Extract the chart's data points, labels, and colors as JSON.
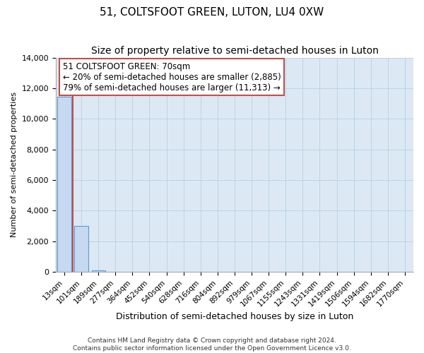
{
  "title": "51, COLTSFOOT GREEN, LUTON, LU4 0XW",
  "subtitle": "Size of property relative to semi-detached houses in Luton",
  "xlabel": "Distribution of semi-detached houses by size in Luton",
  "ylabel": "Number of semi-detached properties",
  "categories": [
    "13sqm",
    "101sqm",
    "189sqm",
    "277sqm",
    "364sqm",
    "452sqm",
    "540sqm",
    "628sqm",
    "716sqm",
    "804sqm",
    "892sqm",
    "979sqm",
    "1067sqm",
    "1155sqm",
    "1243sqm",
    "1331sqm",
    "1419sqm",
    "1506sqm",
    "1594sqm",
    "1682sqm",
    "1770sqm"
  ],
  "values": [
    11450,
    3000,
    80,
    0,
    0,
    0,
    0,
    0,
    0,
    0,
    0,
    0,
    0,
    0,
    0,
    0,
    0,
    0,
    0,
    0,
    0
  ],
  "bar_color": "#c6d9f0",
  "bar_edge_color": "#5b9bd5",
  "red_line_x": 0.5,
  "ylim": [
    0,
    14000
  ],
  "yticks": [
    0,
    2000,
    4000,
    6000,
    8000,
    10000,
    12000,
    14000
  ],
  "annotation_title": "51 COLTSFOOT GREEN: 70sqm",
  "annotation_line1": "← 20% of semi-detached houses are smaller (2,885)",
  "annotation_line2": "79% of semi-detached houses are larger (11,313) →",
  "annotation_box_color": "#ffffff",
  "annotation_box_edge": "#c0504d",
  "footer1": "Contains HM Land Registry data © Crown copyright and database right 2024.",
  "footer2": "Contains public sector information licensed under the Open Government Licence v3.0.",
  "bg_color": "#ffffff",
  "plot_bg_color": "#dce9f5",
  "grid_color": "#b8cfe0",
  "title_fontsize": 11,
  "subtitle_fontsize": 10,
  "axis_bg": "#dce9f5"
}
